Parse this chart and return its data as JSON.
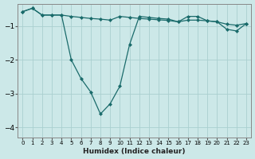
{
  "xlabel": "Humidex (Indice chaleur)",
  "background_color": "#cce8e8",
  "grid_color": "#aacfcf",
  "line_color": "#1a6b6b",
  "xlim": [
    -0.5,
    23.5
  ],
  "ylim": [
    -4.3,
    -0.35
  ],
  "yticks": [
    -4,
    -3,
    -2,
    -1
  ],
  "xticks": [
    0,
    1,
    2,
    3,
    4,
    5,
    6,
    7,
    8,
    9,
    10,
    11,
    12,
    13,
    14,
    15,
    16,
    17,
    18,
    19,
    20,
    21,
    22,
    23
  ],
  "series1_x": [
    0,
    1,
    2,
    3,
    4,
    5,
    6,
    7,
    8,
    9,
    10,
    11,
    12,
    13,
    14,
    15,
    16,
    17,
    18,
    19,
    20,
    21,
    22,
    23
  ],
  "series1_y": [
    -0.58,
    -0.48,
    -0.68,
    -0.68,
    -0.68,
    -0.72,
    -0.75,
    -0.78,
    -0.8,
    -0.83,
    -0.72,
    -0.75,
    -0.78,
    -0.8,
    -0.82,
    -0.84,
    -0.88,
    -0.83,
    -0.83,
    -0.85,
    -0.88,
    -0.95,
    -0.98,
    -0.93
  ],
  "series2_x": [
    0,
    1,
    2,
    3,
    4,
    5,
    6,
    7,
    8,
    9,
    10,
    11,
    12,
    13,
    14,
    15,
    16,
    17,
    18,
    19,
    20,
    21,
    22,
    23
  ],
  "series2_y": [
    -0.58,
    -0.48,
    -0.68,
    -0.68,
    -0.68,
    -2.0,
    -2.55,
    -2.95,
    -3.6,
    -3.3,
    -2.78,
    -1.55,
    -0.72,
    -0.75,
    -0.78,
    -0.8,
    -0.88,
    -0.72,
    -0.72,
    -0.85,
    -0.88,
    -1.1,
    -1.15,
    -0.93
  ]
}
